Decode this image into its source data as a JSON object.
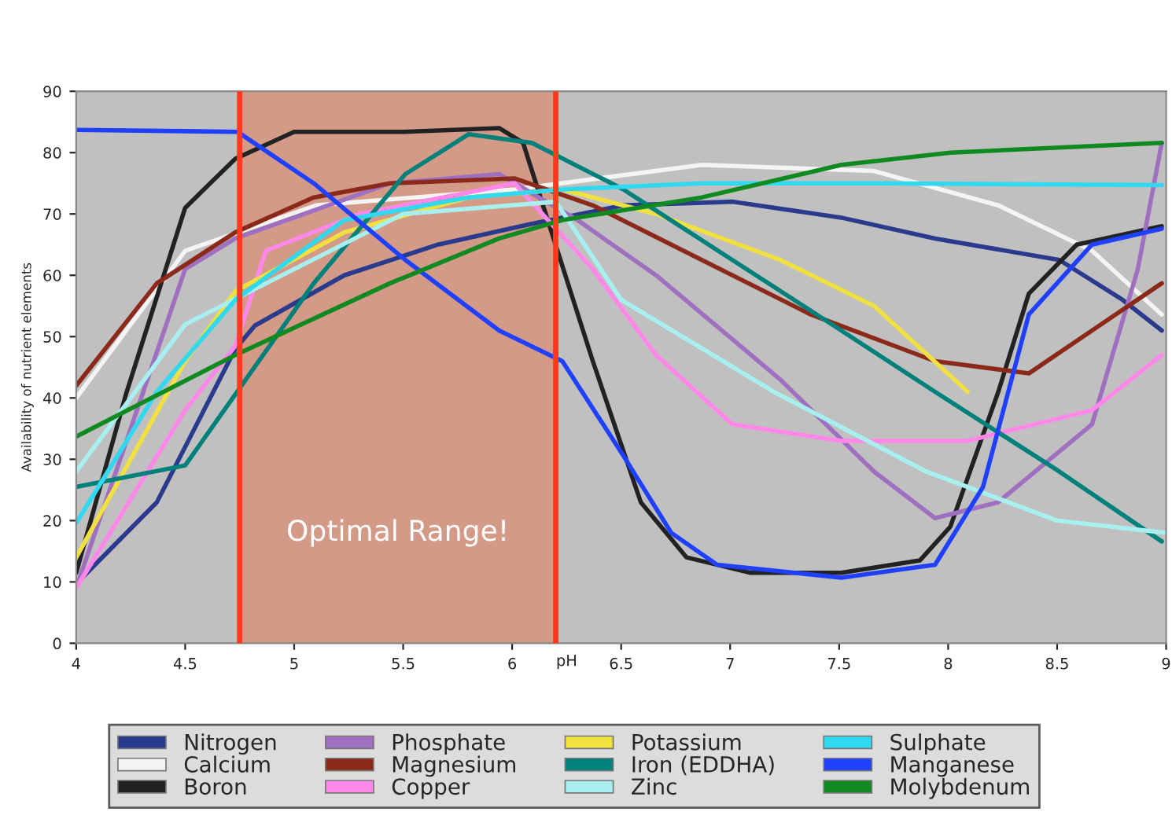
{
  "chart_data": {
    "type": "line",
    "xlabel": "pH",
    "ylabel": "Availability of nutrient elements",
    "xlim": [
      4,
      9
    ],
    "xticks": [
      4,
      4.5,
      5,
      5.5,
      6,
      6.5,
      7,
      7.5,
      8,
      8.5,
      9
    ],
    "ylim": [
      0,
      90
    ],
    "yticks": [
      0,
      10,
      20,
      30,
      40,
      50,
      60,
      70,
      80,
      90
    ],
    "grid": false,
    "legend": "bottom",
    "marker": "none",
    "line_style": "solid",
    "bands": [
      {
        "axis": "x",
        "from": 4.75,
        "to": 6.2,
        "label": "Optimal Range!",
        "color": "#d49a88"
      }
    ],
    "ref_lines": [
      {
        "axis": "x",
        "value": 4.75,
        "color": "#ff3b1f"
      },
      {
        "axis": "x",
        "value": 6.2,
        "color": "#ff3b1f"
      }
    ],
    "series": [
      {
        "name": "Nitrogen",
        "color": "#2a3a8c",
        "x": [
          4,
          4.37,
          4.73,
          4.82,
          5.23,
          5.66,
          6.09,
          6.51,
          7.01,
          7.51,
          7.94,
          8.51,
          8.8,
          8.98
        ],
        "values": [
          9.7,
          23,
          48,
          51.8,
          60,
          65,
          68.4,
          71.4,
          72,
          69.4,
          66,
          62.5,
          56,
          51
        ]
      },
      {
        "name": "Calcium",
        "color": "#f4f4f4",
        "x": [
          4,
          4.5,
          5.1,
          6.01,
          6.87,
          7.66,
          8.23,
          8.66,
          8.98
        ],
        "values": [
          40,
          64,
          71.4,
          74,
          78,
          77,
          71.4,
          64,
          53.6
        ]
      },
      {
        "name": "Boron",
        "color": "#222222",
        "x": [
          4,
          4.23,
          4.5,
          4.73,
          5,
          5.5,
          5.94,
          6.05,
          6.19,
          6.37,
          6.59,
          6.8,
          7.09,
          7.51,
          7.87,
          8.01,
          8.23,
          8.37,
          8.59,
          8.98
        ],
        "values": [
          11.5,
          40.8,
          71,
          79,
          83.4,
          83.4,
          84,
          81.6,
          66,
          46,
          23,
          14,
          11.5,
          11.5,
          13.5,
          19,
          41,
          57,
          65,
          68
        ]
      },
      {
        "name": "Phosphate",
        "color": "#a070c0",
        "x": [
          4,
          4.5,
          4.73,
          5.44,
          5.94,
          6.3,
          6.66,
          7.23,
          7.66,
          7.94,
          8.23,
          8.66,
          8.87,
          8.98
        ],
        "values": [
          9,
          61,
          66,
          75,
          76.5,
          69,
          60,
          43,
          28,
          20.4,
          23,
          35.7,
          61,
          81.6
        ]
      },
      {
        "name": "Magnesium",
        "color": "#8b2a1a",
        "x": [
          4,
          4.37,
          4.73,
          5.09,
          5.44,
          6.01,
          6.37,
          6.87,
          7.37,
          7.94,
          8.37,
          8.66,
          8.98
        ],
        "values": [
          42,
          58.7,
          67,
          72.7,
          75,
          75.8,
          71.4,
          62.5,
          53.6,
          46,
          44,
          51,
          58.7
        ]
      },
      {
        "name": "Copper",
        "color": "#ff88e8",
        "x": [
          4,
          4.5,
          4.73,
          4.87,
          5.3,
          6.01,
          6.37,
          6.66,
          7.01,
          7.51,
          8.09,
          8.66,
          8.98
        ],
        "values": [
          9,
          38,
          48.5,
          64,
          70,
          75,
          61,
          47,
          35.7,
          33,
          33,
          38,
          47
        ]
      },
      {
        "name": "Potassium",
        "color": "#f0e040",
        "x": [
          4,
          4.5,
          4.73,
          5.23,
          5.8,
          6.23,
          6.66,
          7.23,
          7.66,
          8.09
        ],
        "values": [
          14,
          46,
          57.4,
          67,
          72.7,
          74,
          70,
          62.5,
          55,
          41
        ]
      },
      {
        "name": "Iron (EDDHA)",
        "color": "#00807a",
        "x": [
          4,
          4.5,
          5.09,
          5.51,
          5.8,
          6.09,
          6.51,
          7.01,
          7.51,
          7.94,
          8.51,
          8.98
        ],
        "values": [
          25.5,
          29,
          58.7,
          76.5,
          83,
          81.6,
          74,
          62.5,
          51,
          41,
          28,
          16.6
        ]
      },
      {
        "name": "Zinc",
        "color": "#a8f0f0",
        "x": [
          4,
          4.5,
          5.5,
          6.2,
          6.5,
          7.2,
          7.9,
          8.5,
          9
        ],
        "values": [
          28,
          52,
          70,
          72,
          56,
          41,
          28,
          20,
          18
        ]
      },
      {
        "name": "Sulphate",
        "color": "#30d8f0",
        "x": [
          4,
          4.37,
          4.73,
          5.23,
          5.8,
          6.23,
          6.87,
          7.66,
          8.98
        ],
        "values": [
          19.6,
          41,
          56,
          69,
          72.7,
          74,
          75,
          75,
          74.7
        ]
      },
      {
        "name": "Manganese",
        "color": "#2040ff",
        "x": [
          4,
          4.74,
          5.09,
          5.51,
          5.94,
          6.23,
          6.51,
          6.73,
          6.94,
          7.51,
          7.94,
          8.16,
          8.37,
          8.66,
          8.98
        ],
        "values": [
          83.7,
          83.4,
          75,
          62.5,
          51,
          46,
          30.6,
          18,
          12.8,
          10.7,
          12.8,
          25.5,
          53.6,
          65,
          67.6
        ]
      },
      {
        "name": "Molybdenum",
        "color": "#108a20",
        "x": [
          4,
          4.73,
          5.44,
          5.94,
          6.23,
          6.87,
          7.51,
          8.01,
          8.98
        ],
        "values": [
          33.7,
          47,
          58.7,
          66,
          69,
          72.7,
          78,
          80,
          81.6
        ]
      }
    ]
  }
}
